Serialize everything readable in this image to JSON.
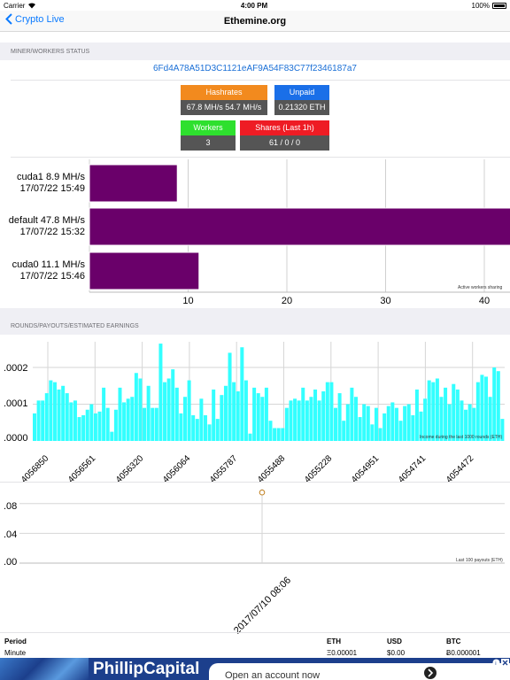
{
  "status_bar": {
    "carrier": "Carrier",
    "time": "4:00 PM",
    "battery": "100%"
  },
  "nav": {
    "back_label": "Crypto Live",
    "title": "Ethemine.org"
  },
  "miner_section": {
    "header": "MINER/WORKERS STATUS",
    "address": "6Fd4A78A51D3C1121eAF9A54F83C77f2346187a7",
    "stats": [
      {
        "label": "Hashrates",
        "value": "67.8 MH/s  54.7 MH/s",
        "color": "#f28a1e"
      },
      {
        "label": "Unpaid",
        "value": "0.21320 ETH",
        "color": "#1a6fe8"
      },
      {
        "label": "Workers",
        "value": "3",
        "color": "#2ee02e"
      },
      {
        "label": "Shares (Last 1h)",
        "value": "61 / 0 / 0",
        "color": "#ee1c24"
      }
    ]
  },
  "workers_chart": {
    "note": "Active workers sharing",
    "bar_color": "#6a006a",
    "x_ticks": [
      "10",
      "20",
      "30",
      "40"
    ],
    "workers": [
      {
        "name_line": "cuda1 8.9 MH/s",
        "date_line": "17/07/22 15:49",
        "value": 8.9
      },
      {
        "name_line": "default 47.8 MH/s",
        "date_line": "17/07/22 15:32",
        "value": 47.8
      },
      {
        "name_line": "cuda0 11.1 MH/s",
        "date_line": "17/07/22 15:46",
        "value": 11.1
      }
    ]
  },
  "rounds_section": {
    "header": "ROUNDS/PAYOUTS/ESTIMATED EARNINGS",
    "note": "Income during the last 1000 rounds (ETH)",
    "bar_color": "#33ffff",
    "y_ticks": [
      ".0002",
      ".0001",
      ".0000"
    ],
    "x_labels": [
      "4056850",
      "4056561",
      "4056320",
      "4056064",
      "4055787",
      "4055488",
      "4055228",
      "4054951",
      "4054741",
      "4054472"
    ],
    "values": [
      7.5e-05,
      0.00011,
      0.00011,
      0.00013,
      0.000165,
      0.00016,
      0.00014,
      0.00015,
      0.00013,
      0.000105,
      0.00011,
      6.5e-05,
      7e-05,
      8.5e-05,
      0.0001,
      7.5e-05,
      8e-05,
      0.000145,
      9e-05,
      2.5e-05,
      8.5e-05,
      0.000145,
      0.000105,
      0.000115,
      0.00012,
      0.000185,
      0.00017,
      9e-05,
      0.00015,
      9e-05,
      9e-05,
      0.000265,
      0.00016,
      0.00017,
      0.000195,
      0.000145,
      7.5e-05,
      0.00012,
      0.000165,
      7e-05,
      6e-05,
      0.000115,
      7e-05,
      4.5e-05,
      0.00014,
      6e-05,
      0.000125,
      0.00015,
      0.00024,
      0.00016,
      0.000135,
      0.000255,
      0.000165,
      2e-05,
      0.000145,
      0.00013,
      0.00012,
      0.000145,
      5.5e-05,
      3.5e-05,
      3.5e-05,
      3.5e-05,
      9e-05,
      0.00011,
      0.000115,
      0.00011,
      0.000145,
      0.00011,
      0.00012,
      0.00014,
      0.00011,
      0.000135,
      0.00016,
      0.00016,
      9e-05,
      0.00013,
      5.5e-05,
      0.0001,
      0.000145,
      0.00012,
      6.5e-05,
      0.0001,
      9.5e-05,
      4.5e-05,
      9e-05,
      3.5e-05,
      7.5e-05,
      9.5e-05,
      0.000105,
      9e-05,
      5.5e-05,
      9.5e-05,
      0.0001,
      7e-05,
      0.00014,
      8e-05,
      0.000115,
      0.000165,
      0.00016,
      0.00017,
      0.00012,
      0.000145,
      0.0001,
      0.000155,
      0.00014,
      0.00011,
      8.5e-05,
      0.0001,
      9e-05,
      0.00016,
      0.00018,
      0.000175,
      0.00012,
      0.0002,
      0.00019,
      6e-05
    ]
  },
  "payouts_chart": {
    "note": "Last 100 payouts (ETH)",
    "y_ticks": [
      ".08",
      ".04",
      ".00"
    ],
    "x_label": "2017/07/10 08:06",
    "point_value": 0.095
  },
  "earnings_table": {
    "headers": {
      "period": "Period",
      "eth": "ETH",
      "usd": "USD",
      "btc": "BTC"
    },
    "rows": [
      {
        "period": "Minute",
        "eth": "Ξ0.00001",
        "usd": "$0.00",
        "btc": "Ƀ0.000001"
      }
    ]
  },
  "ad": {
    "brand": "PhillipCapital",
    "text": "Open an account now",
    "bg_color": "#1c3f8c"
  }
}
